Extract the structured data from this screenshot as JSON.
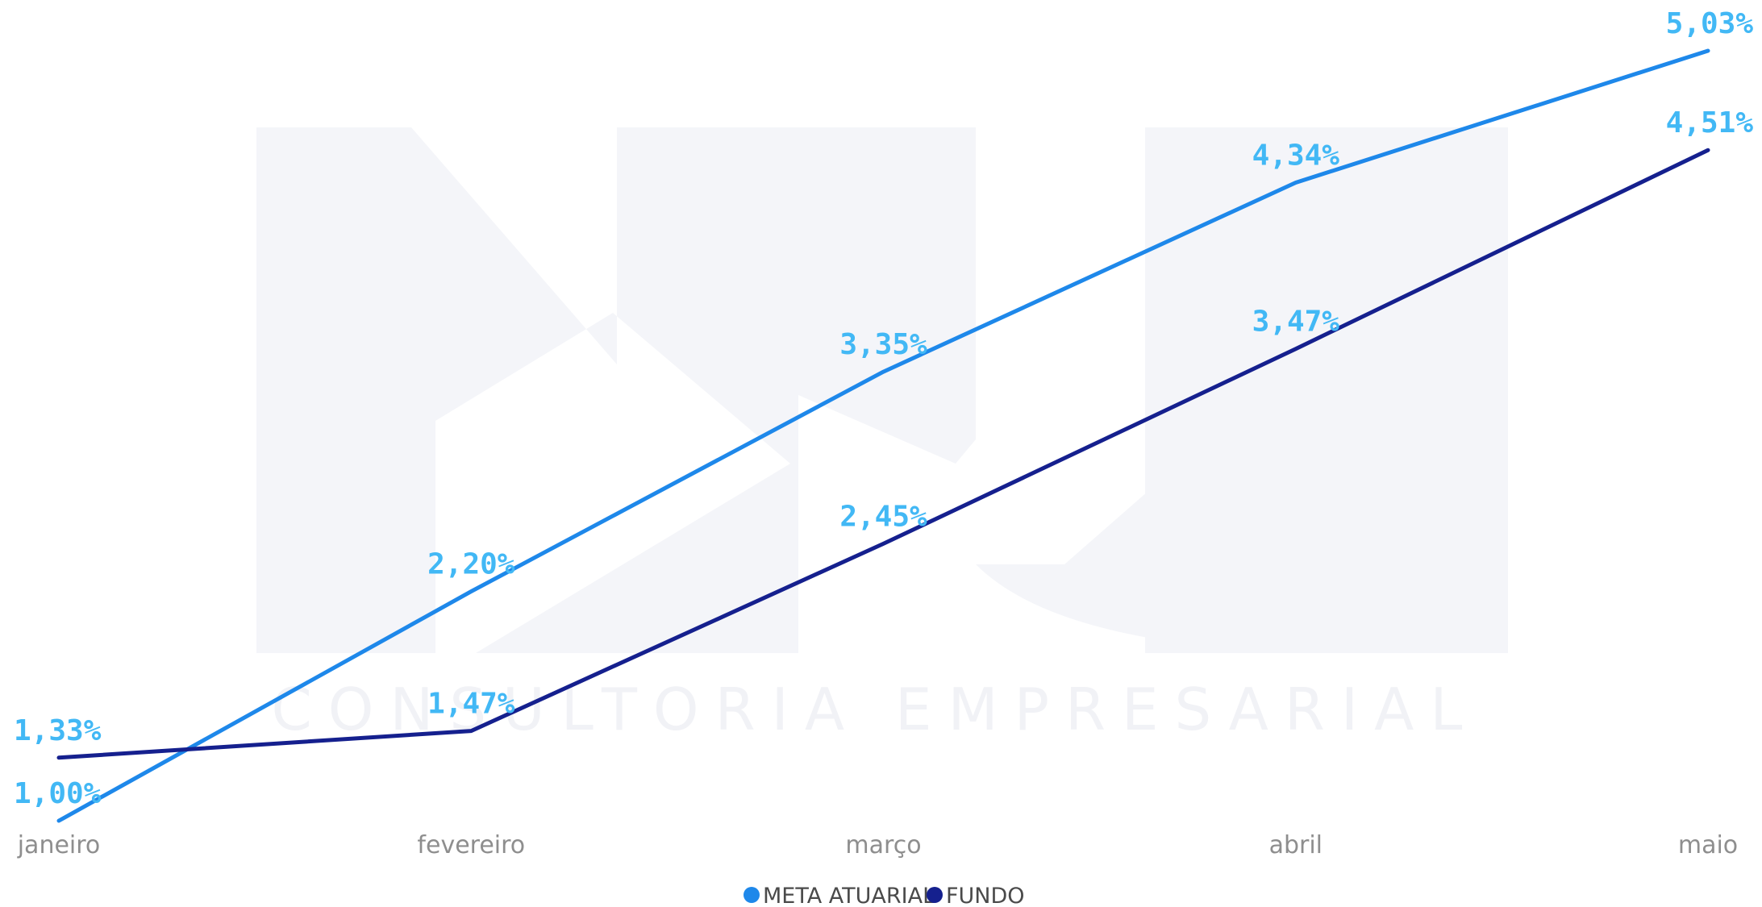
{
  "watermark": {
    "logo": "NJ",
    "text": "CONSULTORIA EMPRESARIAL"
  },
  "chart_data": {
    "type": "line",
    "categories": [
      "janeiro",
      "fevereiro",
      "março",
      "abril",
      "maio"
    ],
    "series": [
      {
        "name": "META ATUARIAL",
        "color": "#1e88ea",
        "values": [
          1.0,
          2.2,
          3.35,
          4.34,
          5.03
        ],
        "labels": [
          "1,00%",
          "2,20%",
          "3,35%",
          "4,34%",
          "5,03%"
        ]
      },
      {
        "name": "FUNDO",
        "color": "#15208e",
        "values": [
          1.33,
          1.47,
          2.45,
          3.47,
          4.51
        ],
        "labels": [
          "1,33%",
          "1,47%",
          "2,45%",
          "3,47%",
          "4,51%"
        ]
      }
    ],
    "ylim": [
      1.0,
      5.03
    ],
    "grid": false,
    "legend_position": "bottom-center",
    "data_label_color": "#42b8f5"
  }
}
